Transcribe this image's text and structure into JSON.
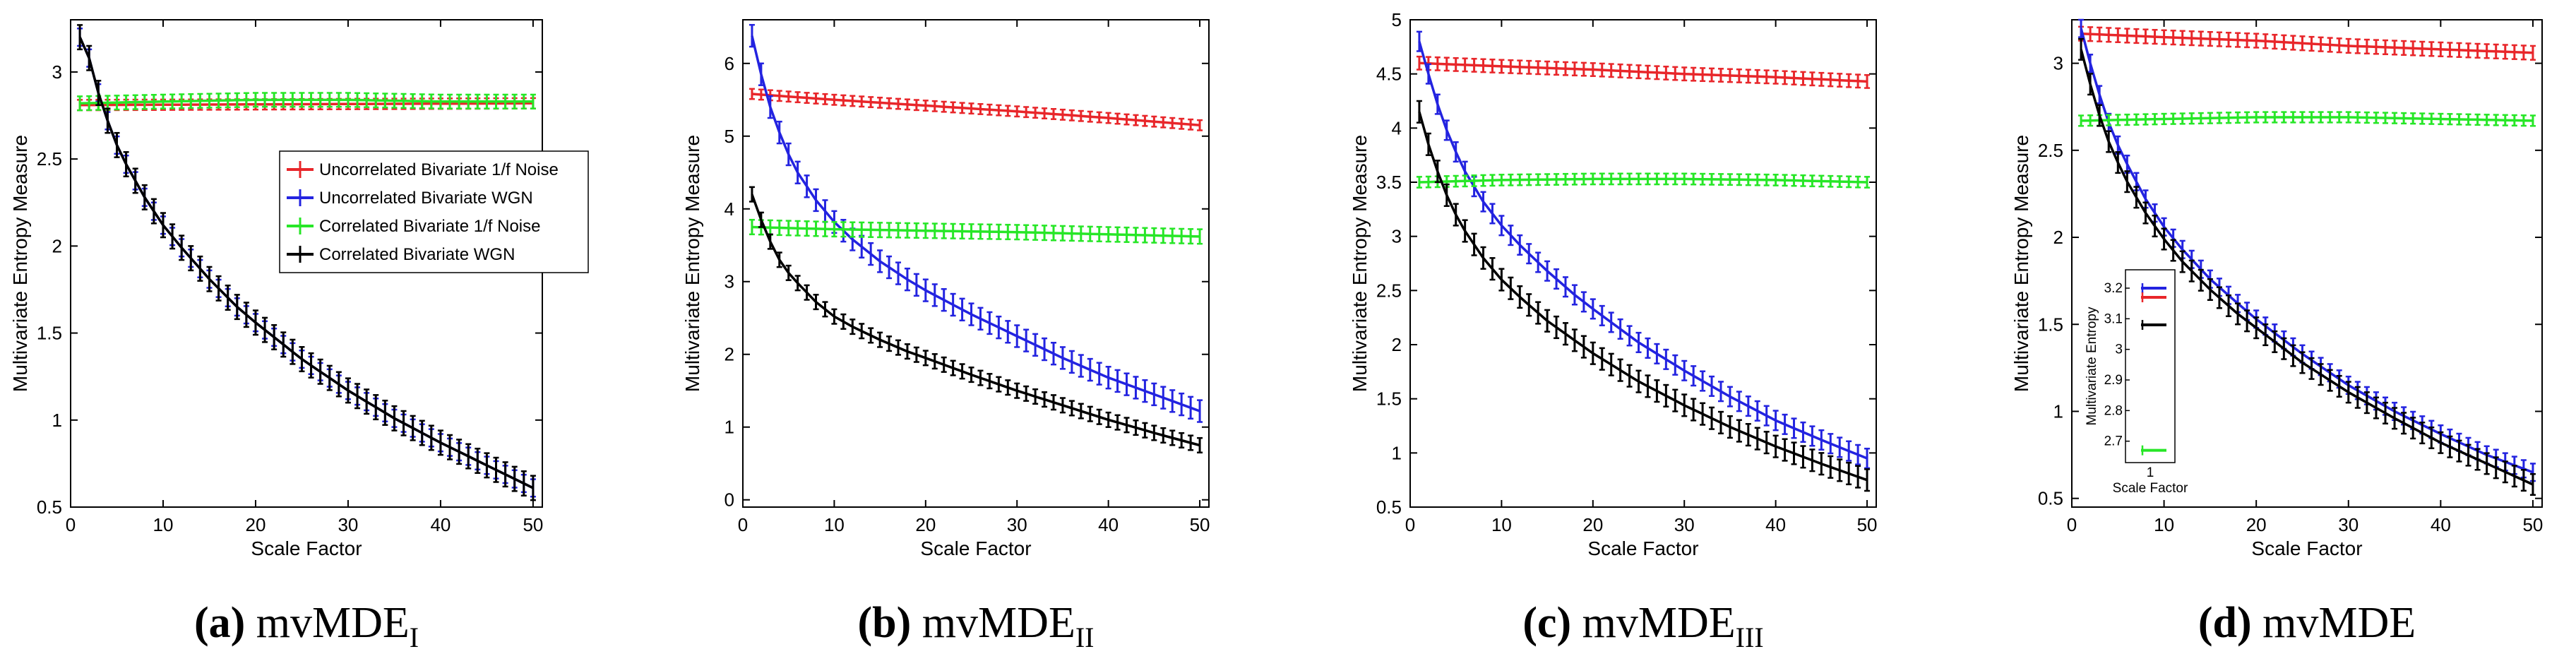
{
  "colors": {
    "uncorrelated_1f": "#e8262a",
    "uncorrelated_wgn": "#2323e0",
    "correlated_1f": "#27e627",
    "correlated_wgn": "#000000"
  },
  "chart_data": [
    {
      "type": "line",
      "id": "a",
      "caption_letter": "(a)",
      "caption_main": "mvMDE",
      "caption_sub": "I",
      "xlabel": "Scale Factor",
      "ylabel": "Multivariate Entropy Measure",
      "xlim": [
        0,
        51
      ],
      "ylim": [
        0.5,
        3.3
      ],
      "xticks": [
        0,
        10,
        20,
        30,
        40,
        50
      ],
      "yticks": [
        0.5,
        1,
        1.5,
        2,
        2.5,
        3
      ],
      "legend": {
        "position": "upper-right",
        "entries": [
          "Uncorrelated Bivariate 1/f Noise",
          "Uncorrelated Bivariate WGN",
          "Correlated Bivariate 1/f Noise",
          "Correlated Bivariate WGN"
        ]
      },
      "series": [
        {
          "name": "Uncorrelated Bivariate 1/f Noise",
          "color": "uncorrelated_1f",
          "x": [
            1,
            50
          ],
          "y": [
            2.81,
            2.82
          ],
          "err": 0.03
        },
        {
          "name": "Uncorrelated Bivariate WGN",
          "color": "uncorrelated_wgn",
          "x": [
            1,
            2,
            3,
            4,
            5,
            6,
            8,
            10,
            12,
            15,
            18,
            20,
            25,
            30,
            35,
            40,
            45,
            50
          ],
          "y": [
            3.2,
            3.08,
            2.88,
            2.72,
            2.58,
            2.47,
            2.28,
            2.12,
            1.99,
            1.81,
            1.65,
            1.56,
            1.35,
            1.17,
            1.01,
            0.87,
            0.74,
            0.61
          ],
          "err": 0.05
        },
        {
          "name": "Correlated Bivariate 1/f Noise",
          "color": "correlated_1f",
          "x": [
            1,
            10,
            20,
            30,
            40,
            50
          ],
          "y": [
            2.82,
            2.83,
            2.84,
            2.84,
            2.83,
            2.83
          ],
          "err": 0.04
        },
        {
          "name": "Correlated Bivariate WGN",
          "color": "correlated_wgn",
          "x": [
            1,
            2,
            3,
            4,
            5,
            6,
            8,
            10,
            12,
            15,
            18,
            20,
            25,
            30,
            35,
            40,
            45,
            50
          ],
          "y": [
            3.2,
            3.08,
            2.88,
            2.72,
            2.58,
            2.47,
            2.28,
            2.12,
            1.99,
            1.81,
            1.65,
            1.56,
            1.35,
            1.17,
            1.01,
            0.87,
            0.74,
            0.61
          ],
          "err": 0.07
        }
      ]
    },
    {
      "type": "line",
      "id": "b",
      "caption_letter": "(b)",
      "caption_main": "mvMDE",
      "caption_sub": "II",
      "xlabel": "Scale Factor",
      "ylabel": "Multivariate Entropy Measure",
      "xlim": [
        0,
        51
      ],
      "ylim": [
        -0.1,
        6.6
      ],
      "xticks": [
        0,
        10,
        20,
        30,
        40,
        50
      ],
      "yticks": [
        0,
        1,
        2,
        3,
        4,
        5,
        6
      ],
      "series": [
        {
          "name": "Uncorrelated Bivariate 1/f Noise",
          "color": "uncorrelated_1f",
          "x": [
            1,
            10,
            20,
            30,
            40,
            50
          ],
          "y": [
            5.58,
            5.5,
            5.42,
            5.34,
            5.25,
            5.15
          ],
          "err": 0.07
        },
        {
          "name": "Uncorrelated Bivariate WGN",
          "color": "uncorrelated_wgn",
          "x": [
            1,
            2,
            3,
            4,
            5,
            6,
            8,
            10,
            12,
            15,
            18,
            20,
            25,
            30,
            35,
            40,
            45,
            50
          ],
          "y": [
            6.38,
            5.85,
            5.4,
            5.05,
            4.75,
            4.5,
            4.12,
            3.82,
            3.58,
            3.28,
            3.03,
            2.88,
            2.55,
            2.25,
            1.95,
            1.68,
            1.45,
            1.22
          ],
          "err": 0.15
        },
        {
          "name": "Correlated Bivariate 1/f Noise",
          "color": "correlated_1f",
          "x": [
            1,
            10,
            20,
            30,
            40,
            50
          ],
          "y": [
            3.75,
            3.72,
            3.7,
            3.68,
            3.65,
            3.62
          ],
          "err": 0.1
        },
        {
          "name": "Correlated Bivariate WGN",
          "color": "correlated_wgn",
          "x": [
            1,
            2,
            3,
            4,
            5,
            6,
            8,
            10,
            12,
            15,
            18,
            20,
            25,
            30,
            35,
            40,
            45,
            50
          ],
          "y": [
            4.2,
            3.85,
            3.55,
            3.3,
            3.12,
            2.98,
            2.72,
            2.52,
            2.38,
            2.2,
            2.04,
            1.95,
            1.72,
            1.5,
            1.3,
            1.1,
            0.92,
            0.75
          ],
          "err": 0.1
        }
      ]
    },
    {
      "type": "line",
      "id": "c",
      "caption_letter": "(c)",
      "caption_main": "mvMDE",
      "caption_sub": "III",
      "xlabel": "Scale Factor",
      "ylabel": "Multivariate Entropy Measure",
      "xlim": [
        0,
        51
      ],
      "ylim": [
        0.5,
        5
      ],
      "xticks": [
        0,
        10,
        20,
        30,
        40,
        50
      ],
      "yticks": [
        0.5,
        1,
        1.5,
        2,
        2.5,
        3,
        3.5,
        4,
        4.5,
        5
      ],
      "series": [
        {
          "name": "Uncorrelated Bivariate 1/f Noise",
          "color": "uncorrelated_1f",
          "x": [
            1,
            10,
            20,
            30,
            40,
            50
          ],
          "y": [
            4.6,
            4.57,
            4.54,
            4.5,
            4.47,
            4.43
          ],
          "err": 0.06
        },
        {
          "name": "Uncorrelated Bivariate WGN",
          "color": "uncorrelated_wgn",
          "x": [
            1,
            2,
            3,
            4,
            5,
            6,
            8,
            10,
            12,
            15,
            18,
            20,
            25,
            30,
            35,
            40,
            45,
            50
          ],
          "y": [
            4.8,
            4.5,
            4.22,
            3.98,
            3.78,
            3.6,
            3.32,
            3.1,
            2.92,
            2.68,
            2.46,
            2.33,
            2.02,
            1.76,
            1.52,
            1.3,
            1.12,
            0.95
          ],
          "err": 0.09
        },
        {
          "name": "Correlated Bivariate 1/f Noise",
          "color": "correlated_1f",
          "x": [
            1,
            10,
            20,
            30,
            40,
            50
          ],
          "y": [
            3.5,
            3.52,
            3.53,
            3.53,
            3.52,
            3.5
          ],
          "err": 0.05
        },
        {
          "name": "Correlated Bivariate WGN",
          "color": "correlated_wgn",
          "x": [
            1,
            2,
            3,
            4,
            5,
            6,
            8,
            10,
            12,
            15,
            18,
            20,
            25,
            30,
            35,
            40,
            45,
            50
          ],
          "y": [
            4.15,
            3.85,
            3.6,
            3.38,
            3.2,
            3.05,
            2.8,
            2.6,
            2.44,
            2.22,
            2.04,
            1.92,
            1.66,
            1.44,
            1.24,
            1.06,
            0.9,
            0.75
          ],
          "err": 0.1
        }
      ]
    },
    {
      "type": "line",
      "id": "d",
      "caption_letter": "(d)",
      "caption_main": "mvMDE",
      "caption_sub": "",
      "xlabel": "Scale Factor",
      "ylabel": "Multivariate Entropy Measure",
      "xlim": [
        0,
        51
      ],
      "ylim": [
        0.45,
        3.25
      ],
      "xticks": [
        0,
        10,
        20,
        30,
        40,
        50
      ],
      "yticks": [
        0.5,
        1,
        1.5,
        2,
        2.5,
        3
      ],
      "series": [
        {
          "name": "Uncorrelated Bivariate 1/f Noise",
          "color": "uncorrelated_1f",
          "x": [
            1,
            10,
            20,
            30,
            40,
            50
          ],
          "y": [
            3.17,
            3.15,
            3.13,
            3.1,
            3.08,
            3.06
          ],
          "err": 0.04
        },
        {
          "name": "Uncorrelated Bivariate WGN",
          "color": "uncorrelated_wgn",
          "x": [
            1,
            2,
            3,
            4,
            5,
            6,
            8,
            10,
            12,
            15,
            18,
            20,
            25,
            30,
            35,
            40,
            45,
            50
          ],
          "y": [
            3.2,
            3.0,
            2.82,
            2.66,
            2.53,
            2.42,
            2.22,
            2.06,
            1.93,
            1.76,
            1.62,
            1.53,
            1.33,
            1.15,
            1.0,
            0.87,
            0.75,
            0.65
          ],
          "err": 0.05
        },
        {
          "name": "Correlated Bivariate 1/f Noise",
          "color": "correlated_1f",
          "x": [
            1,
            10,
            20,
            30,
            40,
            50
          ],
          "y": [
            2.67,
            2.68,
            2.69,
            2.69,
            2.68,
            2.67
          ],
          "err": 0.03
        },
        {
          "name": "Correlated Bivariate WGN",
          "color": "correlated_wgn",
          "x": [
            1,
            2,
            3,
            4,
            5,
            6,
            8,
            10,
            12,
            15,
            18,
            20,
            25,
            30,
            35,
            40,
            45,
            50
          ],
          "y": [
            3.08,
            2.88,
            2.7,
            2.55,
            2.43,
            2.32,
            2.14,
            1.99,
            1.86,
            1.7,
            1.56,
            1.48,
            1.28,
            1.11,
            0.96,
            0.82,
            0.7,
            0.58
          ],
          "err": 0.06
        }
      ],
      "inset": {
        "xlabel": "Scale Factor",
        "ylabel": "Multivariate Entropy",
        "xticks": [
          1
        ],
        "yticks": [
          2.7,
          2.8,
          2.9,
          3,
          3.1,
          3.2
        ],
        "ylim": [
          2.63,
          3.26
        ],
        "points": [
          {
            "color": "uncorrelated_wgn",
            "y": 3.2
          },
          {
            "color": "uncorrelated_1f",
            "y": 3.17
          },
          {
            "color": "correlated_wgn",
            "y": 3.08
          },
          {
            "color": "correlated_1f",
            "y": 2.67
          }
        ]
      }
    }
  ]
}
